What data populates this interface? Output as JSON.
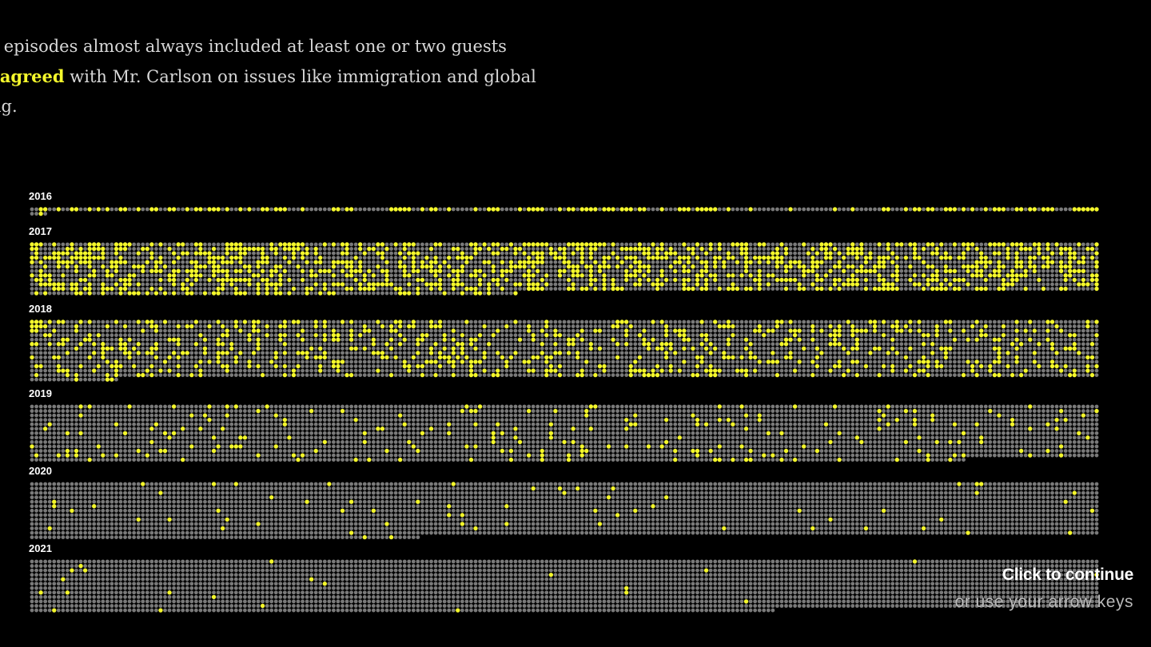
{
  "intro": {
    "line1": "r episodes almost always included at least one or two guests",
    "highlight": "sagreed",
    "line2_rest": " with Mr. Carlson on issues like immigration and global",
    "line3": "ng."
  },
  "colors": {
    "background": "#000000",
    "disagreed": "#f4f72c",
    "other": "#7a7a7a",
    "text": "#d8d8d8"
  },
  "chart_data": {
    "type": "dot-grid",
    "title": "",
    "legend": [],
    "unit": "one dot per guest appearance; highlighted dots = guests who disagreed with Mr. Carlson",
    "years": [
      {
        "year": "2016",
        "highlight_share": 0.42
      },
      {
        "year": "2017",
        "highlight_share": 0.4
      },
      {
        "year": "2018",
        "highlight_share": 0.22
      },
      {
        "year": "2019",
        "highlight_share": 0.08
      },
      {
        "year": "2020",
        "highlight_share": 0.02
      },
      {
        "year": "2021",
        "highlight_share": 0.01
      }
    ]
  },
  "cta": {
    "title": "Click to continue",
    "subtitle": "or use your arrow keys"
  }
}
